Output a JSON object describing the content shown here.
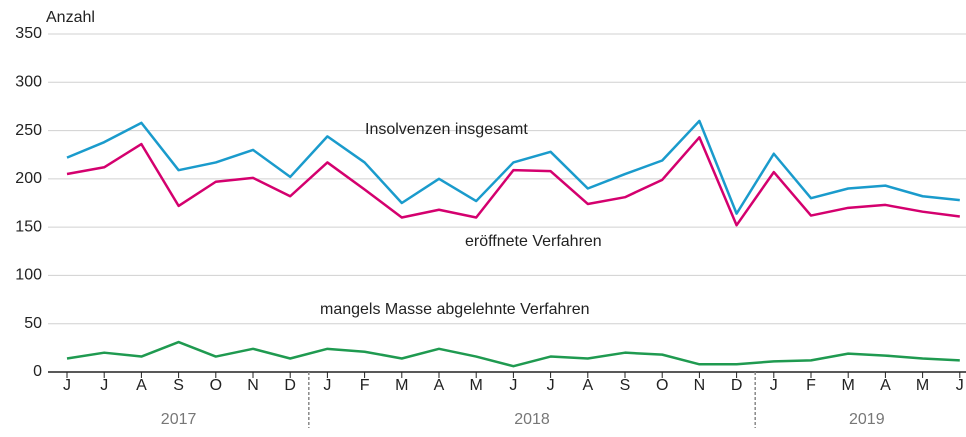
{
  "chart_data": {
    "type": "line",
    "y_axis_label": "Anzahl",
    "categories": [
      "J",
      "J",
      "A",
      "S",
      "O",
      "N",
      "D",
      "J",
      "F",
      "M",
      "A",
      "M",
      "J",
      "J",
      "A",
      "S",
      "O",
      "N",
      "D",
      "J",
      "F",
      "M",
      "A",
      "M",
      "J"
    ],
    "x_groups": [
      {
        "label": "2017",
        "size": 7
      },
      {
        "label": "2018",
        "size": 12
      },
      {
        "label": "2019",
        "size": 6
      }
    ],
    "series": [
      {
        "name": "Insolvenzen insgesamt",
        "color": "#1a9bcc",
        "values": [
          222,
          238,
          258,
          209,
          217,
          230,
          202,
          244,
          217,
          175,
          200,
          177,
          217,
          228,
          190,
          205,
          219,
          260,
          164,
          226,
          180,
          190,
          193,
          182,
          178
        ]
      },
      {
        "name": "eröffnete Verfahren",
        "color": "#d4006e",
        "values": [
          205,
          212,
          236,
          172,
          197,
          201,
          182,
          217,
          189,
          160,
          168,
          160,
          209,
          208,
          174,
          181,
          199,
          243,
          152,
          207,
          162,
          170,
          173,
          166,
          161
        ]
      },
      {
        "name": "mangels Masse abgelehnte Verfahren",
        "color": "#1f9a50",
        "values": [
          14,
          20,
          16,
          31,
          16,
          24,
          14,
          24,
          21,
          14,
          24,
          16,
          6,
          16,
          14,
          20,
          18,
          8,
          8,
          11,
          12,
          19,
          17,
          14,
          12
        ]
      }
    ],
    "ylim": [
      0,
      350
    ],
    "yticks": [
      0,
      50,
      100,
      150,
      200,
      250,
      300,
      350
    ],
    "grid": true
  }
}
